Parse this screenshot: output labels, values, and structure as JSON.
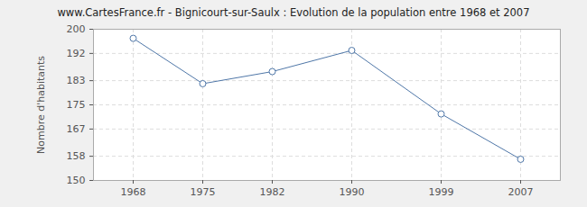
{
  "chart_data": {
    "type": "line",
    "title": "www.CartesFrance.fr - Bignicourt-sur-Saulx : Evolution de la population entre 1968 et 2007",
    "y_label": "Nombre d'habitants",
    "x": [
      1968,
      1975,
      1982,
      1990,
      1999,
      2007
    ],
    "values": [
      197,
      182,
      186,
      193,
      172,
      157
    ],
    "color": "#4f77a8",
    "marker": "circle",
    "xlim": [
      1964,
      2011
    ],
    "xticks": [
      1968,
      1975,
      1982,
      1990,
      1999,
      2007
    ],
    "ylim": [
      150,
      200
    ],
    "yticks": [
      150,
      158,
      167,
      175,
      183,
      192,
      200
    ],
    "grid": true
  }
}
